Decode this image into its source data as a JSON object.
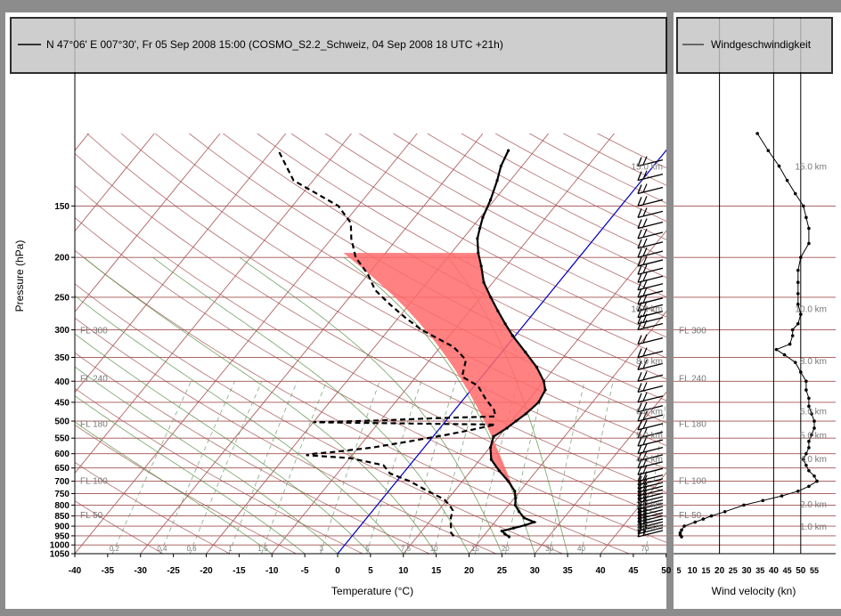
{
  "header": {
    "title": "N 47°06' E 007°30', Fr 05 Sep 2008 15:00 (COSMO_S2.2_Schweiz, 04 Sep 2008 18 UTC +21h)",
    "wind_legend": "Windgeschwindigkeit"
  },
  "chart_data": [
    {
      "type": "line",
      "subtype": "skew-T log-p sounding",
      "ylabel": "Pressure (hPa)",
      "xlabel": "Temperature (°C)",
      "ylim": [
        1050,
        100
      ],
      "xlim": [
        -40,
        50
      ],
      "pressure_ticks": [
        "1050",
        "1000",
        "950",
        "900",
        "850",
        "800",
        "750",
        "700",
        "650",
        "600",
        "550",
        "500",
        "450",
        "400",
        "350",
        "300",
        "250",
        "200",
        "150"
      ],
      "temperature_ticks": [
        "-40",
        "-35",
        "-30",
        "-25",
        "-20",
        "-15",
        "-10",
        "-5",
        "0",
        "5",
        "10",
        "15",
        "20",
        "25",
        "30",
        "35",
        "40",
        "45",
        "50"
      ],
      "flight_levels": [
        {
          "label": "FL 300",
          "p": 300
        },
        {
          "label": "FL 240",
          "p": 393
        },
        {
          "label": "FL 180",
          "p": 506
        },
        {
          "label": "FL 100",
          "p": 697
        },
        {
          "label": "FL 50",
          "p": 843
        }
      ],
      "height_labels": [
        {
          "label": "15.0 km",
          "p": 120
        },
        {
          "label": "10.0 km",
          "p": 266
        },
        {
          "label": "8.0 km",
          "p": 356
        },
        {
          "label": "6.0 km",
          "p": 472
        },
        {
          "label": "5.0 km",
          "p": 540
        },
        {
          "label": "4.0 km",
          "p": 616
        },
        {
          "label": "2.0 km",
          "p": 795
        },
        {
          "label": "1.0 km",
          "p": 899
        }
      ],
      "mixing_ratio_labels": [
        "0.2",
        "0.4",
        "0.6",
        "1",
        "1.5",
        "3",
        "5",
        "7.5",
        "10",
        "15",
        "20",
        "30",
        "40",
        "70"
      ],
      "series": [
        {
          "name": "Temperature",
          "color": "#000000",
          "points": [
            [
              955,
              24.0
            ],
            [
              940,
              23.0
            ],
            [
              925,
              22.2
            ],
            [
              910,
              23.6
            ],
            [
              895,
              25.0
            ],
            [
              880,
              26.0
            ],
            [
              860,
              24.0
            ],
            [
              830,
              22.4
            ],
            [
              800,
              21.0
            ],
            [
              770,
              20.2
            ],
            [
              740,
              19.2
            ],
            [
              700,
              17.0
            ],
            [
              660,
              14.3
            ],
            [
              620,
              11.7
            ],
            [
              580,
              10.1
            ],
            [
              545,
              9.2
            ],
            [
              520,
              10.2
            ],
            [
              500,
              10.7
            ],
            [
              480,
              11.3
            ],
            [
              450,
              11.8
            ],
            [
              420,
              11.3
            ],
            [
              400,
              10.0
            ],
            [
              370,
              7.2
            ],
            [
              340,
              3.6
            ],
            [
              310,
              -0.4
            ],
            [
              290,
              -3.0
            ],
            [
              270,
              -5.7
            ],
            [
              250,
              -8.5
            ],
            [
              230,
              -11.4
            ],
            [
              210,
              -13.8
            ],
            [
              195,
              -15.9
            ],
            [
              180,
              -17.8
            ],
            [
              170,
              -18.7
            ],
            [
              160,
              -19.6
            ],
            [
              145,
              -20.6
            ],
            [
              130,
              -22.0
            ],
            [
              120,
              -23.2
            ],
            [
              110,
              -24.0
            ]
          ]
        },
        {
          "name": "Dewpoint",
          "color": "#000000",
          "points": [
            [
              952,
              15.5
            ],
            [
              935,
              14.7
            ],
            [
              915,
              14.2
            ],
            [
              895,
              13.7
            ],
            [
              870,
              13.0
            ],
            [
              850,
              12.6
            ],
            [
              825,
              12.2
            ],
            [
              800,
              11.0
            ],
            [
              775,
              9.5
            ],
            [
              740,
              6.0
            ],
            [
              700,
              2.0
            ],
            [
              670,
              -2.0
            ],
            [
              640,
              -4.0
            ],
            [
              615,
              -10.0
            ],
            [
              605,
              -17.0
            ],
            [
              600,
              -16.0
            ],
            [
              595,
              -13.5
            ],
            [
              580,
              -8.0
            ],
            [
              560,
              -3.0
            ],
            [
              540,
              1.8
            ],
            [
              525,
              5.0
            ],
            [
              510,
              8.0
            ],
            [
              503,
              -20.0
            ],
            [
              498,
              -10.0
            ],
            [
              492,
              -2.0
            ],
            [
              487,
              7.0
            ],
            [
              470,
              6.0
            ],
            [
              440,
              3.2
            ],
            [
              410,
              0.5
            ],
            [
              390,
              -3.0
            ],
            [
              355,
              -4.5
            ],
            [
              330,
              -8.0
            ],
            [
              300,
              -15.0
            ],
            [
              280,
              -19.0
            ],
            [
              260,
              -23.0
            ],
            [
              240,
              -27.0
            ],
            [
              220,
              -30.0
            ],
            [
              200,
              -34.0
            ],
            [
              180,
              -37.0
            ],
            [
              165,
              -39.0
            ],
            [
              150,
              -43.0
            ],
            [
              130,
              -53.0
            ],
            [
              110,
              -59.0
            ]
          ]
        }
      ]
    },
    {
      "type": "line",
      "title": "Windgeschwindigkeit",
      "xlabel": "Wind velocity (kn)",
      "xlim": [
        5,
        60
      ],
      "ticks": [
        "5",
        "10",
        "15",
        "20",
        "25",
        "30",
        "35",
        "40",
        "45",
        "50",
        "55"
      ],
      "series": [
        {
          "name": "Windgeschwindigkeit",
          "points": [
            [
              955,
              6
            ],
            [
              945,
              5.5
            ],
            [
              935,
              5.5
            ],
            [
              920,
              6
            ],
            [
              900,
              7
            ],
            [
              880,
              11
            ],
            [
              865,
              14
            ],
            [
              850,
              17
            ],
            [
              830,
              22
            ],
            [
              800,
              29
            ],
            [
              780,
              36
            ],
            [
              760,
              43
            ],
            [
              740,
              49
            ],
            [
              720,
              53
            ],
            [
              700,
              56
            ],
            [
              680,
              55
            ],
            [
              660,
              53
            ],
            [
              640,
              52
            ],
            [
              620,
              51
            ],
            [
              600,
              52
            ],
            [
              580,
              53
            ],
            [
              560,
              53
            ],
            [
              540,
              54
            ],
            [
              520,
              55
            ],
            [
              500,
              55
            ],
            [
              480,
              54
            ],
            [
              460,
              53
            ],
            [
              440,
              53
            ],
            [
              420,
              52
            ],
            [
              400,
              52
            ],
            [
              380,
              50
            ],
            [
              360,
              48
            ],
            [
              345,
              44
            ],
            [
              335,
              41
            ],
            [
              325,
              46
            ],
            [
              310,
              47
            ],
            [
              300,
              47
            ],
            [
              290,
              49
            ],
            [
              275,
              50
            ],
            [
              260,
              49
            ],
            [
              245,
              49
            ],
            [
              230,
              49
            ],
            [
              215,
              49
            ],
            [
              200,
              50
            ],
            [
              185,
              53
            ],
            [
              170,
              53
            ],
            [
              160,
              52
            ],
            [
              150,
              51
            ],
            [
              140,
              48
            ],
            [
              130,
              45
            ],
            [
              120,
              42
            ],
            [
              110,
              38
            ],
            [
              100,
              34
            ]
          ]
        }
      ]
    }
  ]
}
